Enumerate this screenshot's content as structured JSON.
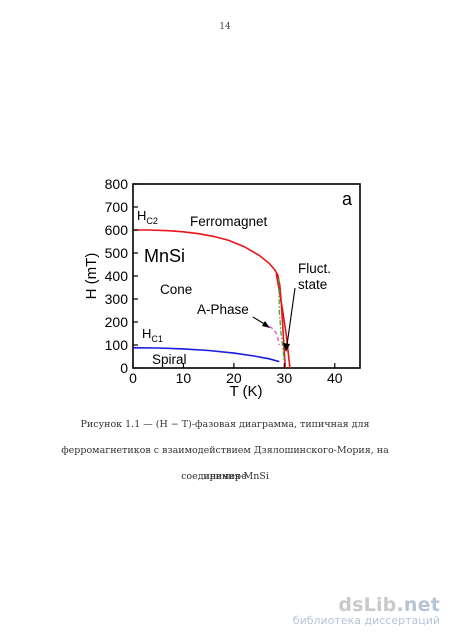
{
  "page": {
    "number": "14"
  },
  "figure": {
    "panel_letter": "a",
    "annotations": {
      "hc2": "H",
      "hc2_sub": "C2",
      "hc1": "H",
      "hc1_sub": "C1",
      "ferromagnet": "Ferromagnet",
      "mnsi": "MnSi",
      "cone": "Cone",
      "a_phase": "A-Phase",
      "spiral": "Spiral",
      "fluct_line1": "Fluct.",
      "fluct_line2": "state"
    },
    "chart_data": {
      "type": "line",
      "xlabel": "T (K)",
      "ylabel": "H (mT)",
      "xlim": [
        0,
        45
      ],
      "ylim": [
        0,
        800
      ],
      "xticks": [
        0,
        10,
        20,
        30,
        40
      ],
      "yticks": [
        0,
        100,
        200,
        300,
        400,
        500,
        600,
        700,
        800
      ],
      "grid": false,
      "series": [
        {
          "color": "#e8141c",
          "dash": "solid",
          "x": [
            0,
            3,
            7,
            10,
            13,
            16,
            19,
            22,
            25,
            27,
            28,
            28.7,
            29.1,
            29.4,
            29.7,
            30.0,
            30.2
          ],
          "y": [
            600,
            600,
            597,
            592,
            584,
            572,
            555,
            528,
            490,
            455,
            430,
            405,
            360,
            280,
            180,
            70,
            0
          ]
        },
        {
          "color": "#1a1ae0",
          "dash": "solid",
          "x": [
            0,
            5,
            10,
            15,
            20,
            24,
            27,
            29
          ],
          "y": [
            88,
            87,
            83,
            76,
            65,
            52,
            40,
            28
          ]
        },
        {
          "color": "#e8141c",
          "dash": "solid",
          "x": [
            28.4,
            29.6,
            30.4,
            31.1
          ],
          "y": [
            410,
            260,
            140,
            0
          ]
        },
        {
          "color": "#2fae2f",
          "dash": "dashdot",
          "x": [
            28.9,
            29.0,
            29.3,
            29.8,
            30.0
          ],
          "y": [
            390,
            250,
            160,
            70,
            30
          ]
        },
        {
          "color": "#e83fd0",
          "dash": "dashed",
          "x": [
            27.0,
            27.8,
            28.3,
            28.6,
            28.8,
            29.0
          ],
          "y": [
            180,
            170,
            155,
            140,
            120,
            100
          ]
        }
      ]
    }
  },
  "caption": {
    "line1": "Рисунок 1.1 — (H − T)-фазовая диаграмма, типичная для",
    "line2": "ферромагнетиков с взаимодействием Дзялошинского-Мория, на примере",
    "line3": "соединения MnSi"
  },
  "watermark": {
    "logo_main": "dsLib",
    "logo_tld": ".net",
    "subtitle": "библиотека диссертаций"
  }
}
